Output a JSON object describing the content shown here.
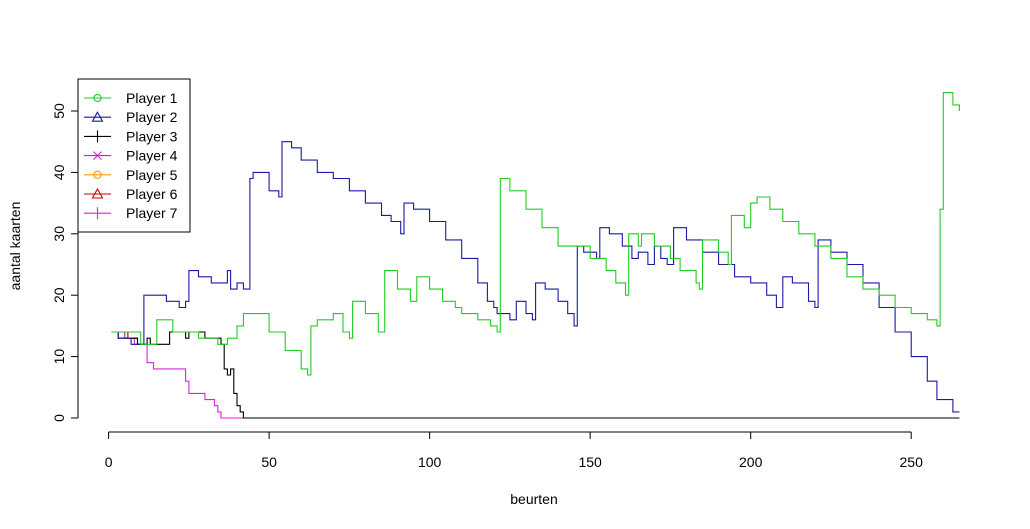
{
  "chart_data": {
    "type": "line",
    "title": "",
    "xlabel": "beurten",
    "ylabel": "aantal kaarten",
    "xlim": [
      1,
      265
    ],
    "ylim": [
      0,
      53
    ],
    "x_ticks": [
      0,
      50,
      100,
      150,
      200,
      250
    ],
    "y_ticks": [
      0,
      10,
      20,
      30,
      40,
      50
    ],
    "grid": false,
    "legend_position": "top-left",
    "series": [
      {
        "name": "Player 1",
        "color": "#22cc22",
        "marker": "circle",
        "points": [
          [
            1,
            14
          ],
          [
            10,
            12
          ],
          [
            12,
            12
          ],
          [
            15,
            16
          ],
          [
            20,
            14
          ],
          [
            25,
            14
          ],
          [
            28,
            13
          ],
          [
            34,
            12
          ],
          [
            37,
            13
          ],
          [
            40,
            15
          ],
          [
            42,
            17
          ],
          [
            44,
            17
          ],
          [
            50,
            14
          ],
          [
            55,
            11
          ],
          [
            60,
            8
          ],
          [
            62,
            7
          ],
          [
            63,
            15
          ],
          [
            65,
            16
          ],
          [
            70,
            17
          ],
          [
            73,
            14
          ],
          [
            75,
            13
          ],
          [
            76,
            19
          ],
          [
            80,
            17
          ],
          [
            84,
            14
          ],
          [
            86,
            24
          ],
          [
            90,
            21
          ],
          [
            94,
            19
          ],
          [
            96,
            23
          ],
          [
            100,
            21
          ],
          [
            104,
            19
          ],
          [
            108,
            18
          ],
          [
            110,
            17
          ],
          [
            115,
            16
          ],
          [
            119,
            15
          ],
          [
            121,
            14
          ],
          [
            122,
            39
          ],
          [
            125,
            37
          ],
          [
            130,
            34
          ],
          [
            135,
            31
          ],
          [
            140,
            28
          ],
          [
            146,
            28
          ],
          [
            150,
            26
          ],
          [
            155,
            24
          ],
          [
            158,
            22
          ],
          [
            161,
            20
          ],
          [
            162,
            30
          ],
          [
            165,
            28
          ],
          [
            166,
            30
          ],
          [
            170,
            28
          ],
          [
            175,
            26
          ],
          [
            178,
            24
          ],
          [
            183,
            22
          ],
          [
            184,
            21
          ],
          [
            185,
            29
          ],
          [
            190,
            27
          ],
          [
            193,
            25
          ],
          [
            194,
            33
          ],
          [
            198,
            31
          ],
          [
            200,
            35
          ],
          [
            202,
            36
          ],
          [
            206,
            34
          ],
          [
            210,
            32
          ],
          [
            215,
            30
          ],
          [
            220,
            28
          ],
          [
            225,
            26
          ],
          [
            230,
            23
          ],
          [
            235,
            21
          ],
          [
            240,
            20
          ],
          [
            245,
            18
          ],
          [
            250,
            17
          ],
          [
            255,
            16
          ],
          [
            258,
            15
          ],
          [
            259,
            34
          ],
          [
            260,
            53
          ],
          [
            263,
            51
          ],
          [
            265,
            50
          ]
        ]
      },
      {
        "name": "Player 2",
        "color": "#1a1aa6",
        "marker": "triangle",
        "points": [
          [
            1,
            14
          ],
          [
            3,
            13
          ],
          [
            6,
            13
          ],
          [
            7,
            12
          ],
          [
            10,
            12
          ],
          [
            11,
            20
          ],
          [
            15,
            20
          ],
          [
            18,
            19
          ],
          [
            22,
            18
          ],
          [
            24,
            19
          ],
          [
            25,
            24
          ],
          [
            28,
            23
          ],
          [
            30,
            23
          ],
          [
            32,
            22
          ],
          [
            35,
            22
          ],
          [
            37,
            24
          ],
          [
            38,
            21
          ],
          [
            40,
            22
          ],
          [
            42,
            21
          ],
          [
            43,
            21
          ],
          [
            44,
            39
          ],
          [
            45,
            40
          ],
          [
            50,
            37
          ],
          [
            53,
            36
          ],
          [
            54,
            45
          ],
          [
            57,
            44
          ],
          [
            60,
            42
          ],
          [
            65,
            40
          ],
          [
            70,
            39
          ],
          [
            75,
            37
          ],
          [
            80,
            35
          ],
          [
            85,
            33
          ],
          [
            88,
            32
          ],
          [
            91,
            30
          ],
          [
            92,
            35
          ],
          [
            95,
            34
          ],
          [
            100,
            32
          ],
          [
            105,
            29
          ],
          [
            110,
            26
          ],
          [
            115,
            22
          ],
          [
            118,
            19
          ],
          [
            120,
            18
          ],
          [
            121,
            17
          ],
          [
            123,
            17
          ],
          [
            125,
            16
          ],
          [
            127,
            19
          ],
          [
            130,
            17
          ],
          [
            132,
            16
          ],
          [
            133,
            22
          ],
          [
            136,
            21
          ],
          [
            140,
            19
          ],
          [
            143,
            17
          ],
          [
            145,
            15
          ],
          [
            146,
            28
          ],
          [
            148,
            27
          ],
          [
            152,
            26
          ],
          [
            153,
            31
          ],
          [
            156,
            30
          ],
          [
            160,
            28
          ],
          [
            163,
            26
          ],
          [
            165,
            27
          ],
          [
            168,
            25
          ],
          [
            170,
            28
          ],
          [
            172,
            26
          ],
          [
            174,
            25
          ],
          [
            176,
            31
          ],
          [
            180,
            29
          ],
          [
            185,
            27
          ],
          [
            190,
            25
          ],
          [
            195,
            23
          ],
          [
            200,
            22
          ],
          [
            205,
            20
          ],
          [
            208,
            18
          ],
          [
            210,
            23
          ],
          [
            213,
            22
          ],
          [
            218,
            19
          ],
          [
            220,
            18
          ],
          [
            221,
            29
          ],
          [
            225,
            27
          ],
          [
            230,
            25
          ],
          [
            235,
            22
          ],
          [
            240,
            18
          ],
          [
            245,
            14
          ],
          [
            250,
            10
          ],
          [
            255,
            6
          ],
          [
            258,
            3
          ],
          [
            260,
            3
          ],
          [
            263,
            1
          ],
          [
            265,
            1
          ]
        ]
      },
      {
        "name": "Player 3",
        "color": "#000000",
        "marker": "plus",
        "points": [
          [
            1,
            14
          ],
          [
            3,
            13
          ],
          [
            6,
            13
          ],
          [
            9,
            12
          ],
          [
            11,
            12
          ],
          [
            12,
            13
          ],
          [
            13,
            12
          ],
          [
            18,
            12
          ],
          [
            19,
            14
          ],
          [
            22,
            14
          ],
          [
            24,
            13
          ],
          [
            25,
            14
          ],
          [
            30,
            13
          ],
          [
            33,
            13
          ],
          [
            35,
            12
          ],
          [
            36,
            8
          ],
          [
            37,
            7
          ],
          [
            38,
            8
          ],
          [
            39,
            4
          ],
          [
            40,
            2
          ],
          [
            41,
            1
          ],
          [
            42,
            0
          ],
          [
            265,
            0
          ]
        ]
      },
      {
        "name": "Player 4",
        "color": "#cc22cc",
        "marker": "cross",
        "points": [
          [
            1,
            14
          ],
          [
            4,
            14
          ],
          [
            5,
            13
          ],
          [
            8,
            12
          ],
          [
            11,
            12
          ]
        ]
      },
      {
        "name": "Player 5",
        "color": "#ff9900",
        "marker": "circle",
        "points": [
          [
            1,
            14
          ],
          [
            3,
            14
          ],
          [
            5,
            13
          ],
          [
            8,
            13
          ]
        ]
      },
      {
        "name": "Player 6",
        "color": "#cc0000",
        "marker": "triangle",
        "points": [
          [
            1,
            14
          ],
          [
            4,
            14
          ],
          [
            6,
            13
          ],
          [
            9,
            12
          ]
        ]
      },
      {
        "name": "Player 7",
        "color": "#e01ee0",
        "marker": "plus",
        "points": [
          [
            1,
            14
          ],
          [
            6,
            13
          ],
          [
            9,
            12
          ],
          [
            11,
            12
          ],
          [
            12,
            9
          ],
          [
            14,
            8
          ],
          [
            18,
            8
          ],
          [
            22,
            8
          ],
          [
            24,
            6
          ],
          [
            25,
            4
          ],
          [
            29,
            4
          ],
          [
            30,
            3
          ],
          [
            33,
            2
          ],
          [
            34,
            1
          ],
          [
            35,
            0
          ],
          [
            265,
            0
          ]
        ]
      }
    ]
  }
}
